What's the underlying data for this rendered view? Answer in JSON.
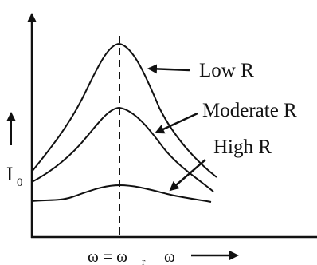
{
  "labels": {
    "low_r": "Low R",
    "moderate_r": "Moderate R",
    "high_r": "High R",
    "y_axis": "I",
    "y_axis_sub": "0",
    "x_resonance": "ω = ω",
    "x_resonance_sub": "r",
    "x_axis": "ω"
  }
}
